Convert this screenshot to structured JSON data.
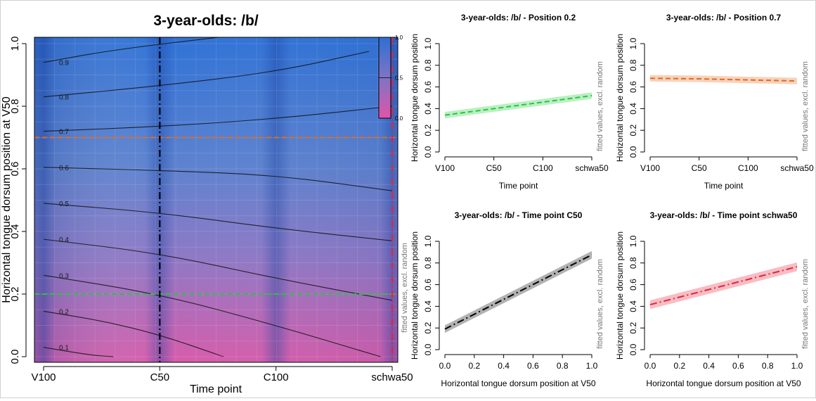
{
  "colors": {
    "orange": "#e36a1e",
    "green": "#22c93a",
    "black": "#000000",
    "red": "#e8233a",
    "heat_high": "#2e6fd3",
    "heat_mid": "#8a78c6",
    "heat_low": "#e15aa8"
  },
  "chart_data": [
    {
      "type": "heatmap",
      "title": "3-year-olds: /b/",
      "xlabel": "Time point",
      "ylabel": "Horizontal tongue dorsum position at V50",
      "side_label": "fitted values, excl. random",
      "x_ticks": [
        "V100",
        "C50",
        "C100",
        "schwa50"
      ],
      "y_ticks": [
        "0.0",
        "0.2",
        "0.4",
        "0.6",
        "0.8",
        "1.0"
      ],
      "ylim": [
        0,
        1
      ],
      "legend_ticks": [
        "0.0",
        "0.5",
        "1.0"
      ],
      "contours": [
        {
          "label": "0.9",
          "points": [
            [
              1,
              0.94
            ],
            [
              1.6,
              0.98
            ],
            [
              2.5,
              1.02
            ]
          ]
        },
        {
          "label": "0.8",
          "points": [
            [
              1,
              0.83
            ],
            [
              2,
              0.865
            ],
            [
              3,
              0.91
            ],
            [
              3.8,
              0.975
            ]
          ]
        },
        {
          "label": "0.7",
          "points": [
            [
              1,
              0.72
            ],
            [
              2,
              0.735
            ],
            [
              3,
              0.76
            ],
            [
              4,
              0.8
            ]
          ]
        },
        {
          "label": "0.6",
          "points": [
            [
              1,
              0.605
            ],
            [
              2,
              0.595
            ],
            [
              3,
              0.58
            ],
            [
              4,
              0.53
            ]
          ]
        },
        {
          "label": "0.5",
          "points": [
            [
              1,
              0.49
            ],
            [
              2,
              0.46
            ],
            [
              3,
              0.41
            ],
            [
              4,
              0.37
            ]
          ]
        },
        {
          "label": "0.4",
          "points": [
            [
              1,
              0.375
            ],
            [
              2,
              0.33
            ],
            [
              3,
              0.25
            ],
            [
              4,
              0.18
            ]
          ]
        },
        {
          "label": "0.3",
          "points": [
            [
              1,
              0.26
            ],
            [
              2,
              0.2
            ],
            [
              3,
              0.1
            ],
            [
              3.9,
              0.0
            ]
          ]
        },
        {
          "label": "0.2",
          "points": [
            [
              1,
              0.145
            ],
            [
              1.5,
              0.115
            ],
            [
              2,
              0.07
            ],
            [
              2.55,
              0.0
            ]
          ]
        },
        {
          "label": "0.1",
          "points": [
            [
              1,
              0.03
            ],
            [
              1.4,
              0.005
            ],
            [
              1.6,
              0.0
            ]
          ]
        }
      ],
      "reference_lines": [
        {
          "orientation": "horizontal",
          "value": 0.7,
          "color": "orange",
          "style": "dashed"
        },
        {
          "orientation": "horizontal",
          "value": 0.2,
          "color": "green",
          "style": "dashed"
        },
        {
          "orientation": "vertical",
          "value": "C50",
          "color": "black",
          "style": "dashdot"
        },
        {
          "orientation": "vertical",
          "value": "schwa50",
          "color": "red",
          "style": "dashdot"
        }
      ]
    },
    {
      "type": "line",
      "title": "3-year-olds: /b/ - Position 0.2",
      "xlabel": "Time point",
      "ylabel": "Horizontal tongue dorsum position",
      "side_label": "fitted values, excl. random",
      "categories": [
        "V100",
        "C50",
        "C100",
        "schwa50"
      ],
      "x_ticks": [
        "V100",
        "C50",
        "C100",
        "schwa50"
      ],
      "y_ticks": [
        "0.0",
        "0.2",
        "0.4",
        "0.6",
        "0.8",
        "1.0"
      ],
      "ylim": [
        0,
        1
      ],
      "values": [
        0.34,
        0.4,
        0.46,
        0.52
      ],
      "ci_halfwidth": 0.03,
      "color": "green",
      "style": "dashed"
    },
    {
      "type": "line",
      "title": "3-year-olds: /b/ - Position 0.7",
      "xlabel": "Time point",
      "ylabel": "Horizontal tongue dorsum position",
      "side_label": "fitted values, excl. random",
      "categories": [
        "V100",
        "C50",
        "C100",
        "schwa50"
      ],
      "x_ticks": [
        "V100",
        "C50",
        "C100",
        "schwa50"
      ],
      "y_ticks": [
        "0.0",
        "0.2",
        "0.4",
        "0.6",
        "0.8",
        "1.0"
      ],
      "ylim": [
        0,
        1
      ],
      "values": [
        0.68,
        0.675,
        0.665,
        0.655
      ],
      "ci_halfwidth": 0.03,
      "color": "orange",
      "style": "dashed"
    },
    {
      "type": "line",
      "title": "3-year-olds: /b/ - Time point C50",
      "xlabel": "Horizontal tongue dorsum position at V50",
      "ylabel": "Horizontal tongue dorsum position",
      "side_label": "fitted values, excl. random",
      "x": [
        0.0,
        1.0
      ],
      "x_ticks": [
        "0.0",
        "0.2",
        "0.4",
        "0.6",
        "0.8",
        "1.0"
      ],
      "y_ticks": [
        "0.0",
        "0.2",
        "0.4",
        "0.6",
        "0.8",
        "1.0"
      ],
      "xlim": [
        0,
        1
      ],
      "ylim": [
        0,
        1
      ],
      "values": [
        0.19,
        0.875
      ],
      "ci_halfwidth": 0.035,
      "color": "black",
      "style": "dashdot"
    },
    {
      "type": "line",
      "title": "3-year-olds: /b/ - Time point schwa50",
      "xlabel": "Horizontal tongue dorsum position at V50",
      "ylabel": "Horizontal tongue dorsum position",
      "side_label": "fitted values, excl. random",
      "x": [
        0.0,
        1.0
      ],
      "x_ticks": [
        "0.0",
        "0.2",
        "0.4",
        "0.6",
        "0.8",
        "1.0"
      ],
      "y_ticks": [
        "0.0",
        "0.2",
        "0.4",
        "0.6",
        "0.8",
        "1.0"
      ],
      "xlim": [
        0,
        1
      ],
      "ylim": [
        0,
        1
      ],
      "values": [
        0.415,
        0.765
      ],
      "ci_halfwidth": 0.04,
      "color": "red",
      "style": "dashdot"
    }
  ]
}
